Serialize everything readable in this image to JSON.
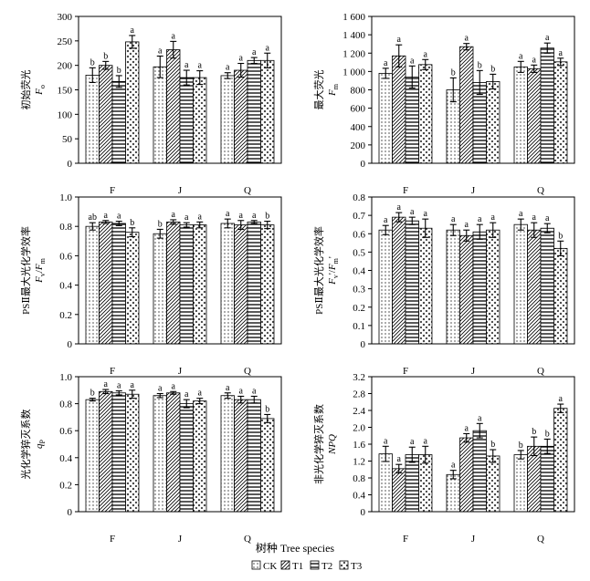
{
  "figure": {
    "x_axis_title": "树种 Tree species",
    "legend": [
      {
        "key": "CK",
        "label": "CK",
        "pattern": "dots"
      },
      {
        "key": "T1",
        "label": "T1",
        "pattern": "diagonal"
      },
      {
        "key": "T2",
        "label": "T2",
        "pattern": "horizontal"
      },
      {
        "key": "T3",
        "label": "T3",
        "pattern": "crosses"
      }
    ]
  },
  "chart_data": [
    {
      "id": "fo",
      "type": "bar",
      "ylabel_cn": "初始荧光",
      "ylabel_var": "F",
      "ylabel_sub": "o",
      "ylim": [
        0,
        300
      ],
      "yticks": [
        0,
        50,
        100,
        150,
        200,
        250,
        300
      ],
      "ytick_labels": [
        "0",
        "50",
        "100",
        "150",
        "200",
        "250",
        "300"
      ],
      "categories": [
        "F",
        "J",
        "Q"
      ],
      "series": [
        {
          "name": "CK",
          "values": [
            180,
            197,
            179
          ],
          "errors": [
            15,
            22,
            6
          ],
          "letters": [
            "b",
            "a",
            "a"
          ]
        },
        {
          "name": "T1",
          "values": [
            200,
            232,
            190
          ],
          "errors": [
            8,
            17,
            14
          ],
          "letters": [
            "b",
            "a",
            "a"
          ]
        },
        {
          "name": "T2",
          "values": [
            167,
            175,
            210
          ],
          "errors": [
            12,
            15,
            6
          ],
          "letters": [
            "b",
            "a",
            "a"
          ]
        },
        {
          "name": "T3",
          "values": [
            248,
            175,
            210
          ],
          "errors": [
            13,
            14,
            15
          ],
          "letters": [
            "a",
            "a",
            "a"
          ]
        }
      ]
    },
    {
      "id": "fm",
      "type": "bar",
      "ylabel_cn": "最大荧光",
      "ylabel_var": "F",
      "ylabel_sub": "m",
      "ylim": [
        0,
        1600
      ],
      "yticks": [
        0,
        200,
        400,
        600,
        800,
        1000,
        1200,
        1400,
        1600
      ],
      "ytick_labels": [
        "0",
        "200",
        "400",
        "600",
        "800",
        "1 000",
        "1 200",
        "1 400",
        "1 600"
      ],
      "categories": [
        "F",
        "J",
        "Q"
      ],
      "series": [
        {
          "name": "CK",
          "values": [
            980,
            800,
            1050
          ],
          "errors": [
            55,
            130,
            60
          ],
          "letters": [
            "a",
            "b",
            "a"
          ]
        },
        {
          "name": "T1",
          "values": [
            1170,
            1270,
            1030
          ],
          "errors": [
            120,
            35,
            40
          ],
          "letters": [
            "a",
            "a",
            "a"
          ]
        },
        {
          "name": "T2",
          "values": [
            940,
            880,
            1255
          ],
          "errors": [
            120,
            130,
            55
          ],
          "letters": [
            "a",
            "b",
            "a"
          ]
        },
        {
          "name": "T3",
          "values": [
            1075,
            890,
            1105
          ],
          "errors": [
            55,
            80,
            40
          ],
          "letters": [
            "a",
            "b",
            "a"
          ]
        }
      ]
    },
    {
      "id": "fvfm",
      "type": "bar",
      "ylabel_cn": "PSⅡ最大光化学效率",
      "ylabel_var": "F",
      "ylabel_sub": "v",
      "ylabel_var2": "F",
      "ylabel_sub2": "m",
      "ylim": [
        0,
        1.0
      ],
      "yticks": [
        0,
        0.2,
        0.4,
        0.6,
        0.8,
        1.0
      ],
      "ytick_labels": [
        "0",
        "0.2",
        "0.4",
        "0.6",
        "0.8",
        "1.0"
      ],
      "categories": [
        "F",
        "J",
        "Q"
      ],
      "series": [
        {
          "name": "CK",
          "values": [
            0.8,
            0.75,
            0.82
          ],
          "errors": [
            0.025,
            0.03,
            0.03
          ],
          "letters": [
            "ab",
            "b",
            "a"
          ]
        },
        {
          "name": "T1",
          "values": [
            0.83,
            0.83,
            0.81
          ],
          "errors": [
            0.01,
            0.015,
            0.03
          ],
          "letters": [
            "a",
            "a",
            "a"
          ]
        },
        {
          "name": "T2",
          "values": [
            0.82,
            0.81,
            0.83
          ],
          "errors": [
            0.015,
            0.015,
            0.01
          ],
          "letters": [
            "a",
            "a",
            "a"
          ]
        },
        {
          "name": "T3",
          "values": [
            0.76,
            0.81,
            0.81
          ],
          "errors": [
            0.03,
            0.02,
            0.025
          ],
          "letters": [
            "b",
            "a",
            "b"
          ]
        }
      ]
    },
    {
      "id": "fvpfmp",
      "type": "bar",
      "ylabel_cn": "PSⅡ最大光化学效率",
      "ylabel_var": "F",
      "ylabel_sub": "v",
      "ylabel_var2": "F",
      "ylabel_sub2": "m",
      "ylabel_prime": "'",
      "ylim": [
        0,
        0.8
      ],
      "yticks": [
        0,
        0.1,
        0.2,
        0.3,
        0.4,
        0.5,
        0.6,
        0.7,
        0.8
      ],
      "ytick_labels": [
        "0",
        "0.1",
        "0.2",
        "0.3",
        "0.4",
        "0.5",
        "0.6",
        "0.7",
        "0.8"
      ],
      "categories": [
        "F",
        "J",
        "Q"
      ],
      "series": [
        {
          "name": "CK",
          "values": [
            0.62,
            0.62,
            0.65
          ],
          "errors": [
            0.025,
            0.03,
            0.03
          ],
          "letters": [
            "a",
            "a",
            "a"
          ]
        },
        {
          "name": "T1",
          "values": [
            0.69,
            0.59,
            0.62
          ],
          "errors": [
            0.025,
            0.03,
            0.04
          ],
          "letters": [
            "a",
            "a",
            "a"
          ]
        },
        {
          "name": "T2",
          "values": [
            0.67,
            0.61,
            0.63
          ],
          "errors": [
            0.02,
            0.04,
            0.025
          ],
          "letters": [
            "a",
            "a",
            "a"
          ]
        },
        {
          "name": "T3",
          "values": [
            0.63,
            0.62,
            0.52
          ],
          "errors": [
            0.05,
            0.04,
            0.04
          ],
          "letters": [
            "a",
            "a",
            "b"
          ]
        }
      ]
    },
    {
      "id": "qp",
      "type": "bar",
      "ylabel_cn": "光化学猝灭系数",
      "ylabel_var": "q",
      "ylabel_sub": "P",
      "ylim": [
        0,
        1.0
      ],
      "yticks": [
        0,
        0.2,
        0.4,
        0.6,
        0.8,
        1.0
      ],
      "ytick_labels": [
        "0",
        "0.2",
        "0.4",
        "0.6",
        "0.8",
        "1.0"
      ],
      "categories": [
        "F",
        "J",
        "Q"
      ],
      "series": [
        {
          "name": "CK",
          "values": [
            0.83,
            0.86,
            0.86
          ],
          "errors": [
            0.01,
            0.015,
            0.02
          ],
          "letters": [
            "b",
            "a",
            "a"
          ]
        },
        {
          "name": "T1",
          "values": [
            0.89,
            0.88,
            0.83
          ],
          "errors": [
            0.015,
            0.01,
            0.025
          ],
          "letters": [
            "a",
            "a",
            "a"
          ]
        },
        {
          "name": "T2",
          "values": [
            0.88,
            0.8,
            0.83
          ],
          "errors": [
            0.015,
            0.03,
            0.025
          ],
          "letters": [
            "a",
            "a",
            "a"
          ]
        },
        {
          "name": "T3",
          "values": [
            0.87,
            0.82,
            0.69
          ],
          "errors": [
            0.03,
            0.02,
            0.03
          ],
          "letters": [
            "a",
            "a",
            "b"
          ]
        }
      ]
    },
    {
      "id": "npq",
      "type": "bar",
      "ylabel_cn": "非光化学猝灭系数",
      "ylabel_var": "NPQ",
      "ylim": [
        0,
        3.2
      ],
      "yticks": [
        0,
        0.4,
        0.8,
        1.2,
        1.6,
        2.0,
        2.4,
        2.8,
        3.2
      ],
      "ytick_labels": [
        "0",
        "0.4",
        "0.8",
        "1.2",
        "1.6",
        "2.0",
        "2.4",
        "2.8",
        "3.2"
      ],
      "categories": [
        "F",
        "J",
        "Q"
      ],
      "series": [
        {
          "name": "CK",
          "values": [
            1.37,
            0.88,
            1.35
          ],
          "errors": [
            0.18,
            0.1,
            0.1
          ],
          "letters": [
            "a",
            "a",
            "b"
          ]
        },
        {
          "name": "T1",
          "values": [
            1.02,
            1.75,
            1.55
          ],
          "errors": [
            0.1,
            0.1,
            0.22
          ],
          "letters": [
            "a",
            "a",
            "b"
          ]
        },
        {
          "name": "T2",
          "values": [
            1.35,
            1.92,
            1.55
          ],
          "errors": [
            0.18,
            0.17,
            0.17
          ],
          "letters": [
            "a",
            "a",
            "b"
          ]
        },
        {
          "name": "T3",
          "values": [
            1.35,
            1.32,
            2.45
          ],
          "errors": [
            0.2,
            0.15,
            0.1
          ],
          "letters": [
            "a",
            "b",
            "a"
          ]
        }
      ]
    }
  ]
}
